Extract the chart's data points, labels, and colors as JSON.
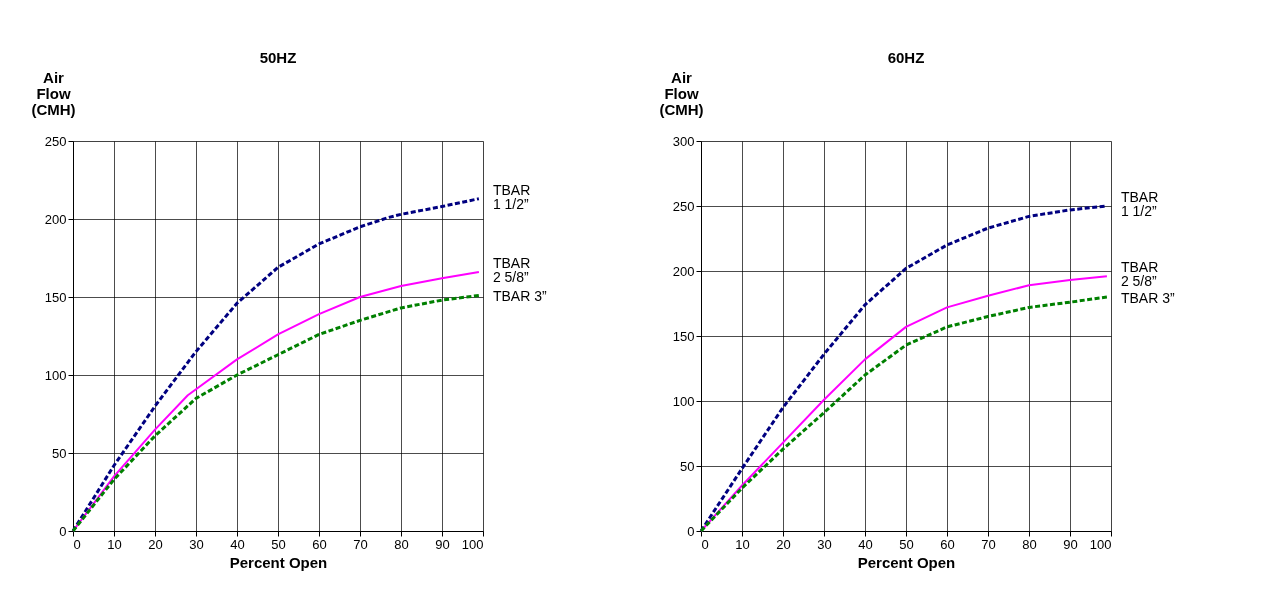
{
  "chart_data": [
    {
      "type": "line",
      "title": "50HZ",
      "xlabel": "Percent Open",
      "ylabel": "Air Flow (CMH)",
      "xlim": [
        0,
        100
      ],
      "ylim": [
        0,
        250
      ],
      "xticks": [
        0,
        10,
        20,
        30,
        40,
        50,
        60,
        70,
        80,
        90,
        100
      ],
      "yticks": [
        0,
        50,
        100,
        150,
        200,
        250
      ],
      "grid": true,
      "legend": false,
      "marker": "none",
      "series": [
        {
          "name": "TBAR 1 1/2”",
          "color": "#000080",
          "line_style": "dashed",
          "x": [
            0,
            10,
            20,
            30,
            40,
            50,
            60,
            70,
            77,
            80,
            90,
            99
          ],
          "values": [
            0,
            42,
            80,
            115,
            146,
            169,
            184,
            195,
            201,
            203,
            208,
            213
          ]
        },
        {
          "name": "TBAR 2 5/8”",
          "color": "#ff00ff",
          "line_style": "solid",
          "x": [
            0,
            10,
            20,
            28,
            40,
            50,
            60,
            70,
            80,
            90,
            99
          ],
          "values": [
            0,
            35,
            65,
            87,
            110,
            126,
            139,
            150,
            157,
            162,
            166
          ]
        },
        {
          "name": "TBAR 3”",
          "color": "#008000",
          "line_style": "dashed",
          "x": [
            0,
            10,
            20,
            30,
            40,
            50,
            60,
            70,
            80,
            90,
            99
          ],
          "values": [
            0,
            33,
            61,
            85,
            100,
            113,
            126,
            135,
            143,
            148,
            151
          ]
        }
      ]
    },
    {
      "type": "line",
      "title": "60HZ",
      "xlabel": "Percent Open",
      "ylabel": "Air Flow (CMH)",
      "xlim": [
        0,
        100
      ],
      "ylim": [
        0,
        300
      ],
      "xticks": [
        0,
        10,
        20,
        30,
        40,
        50,
        60,
        70,
        80,
        90,
        100
      ],
      "yticks": [
        0,
        50,
        100,
        150,
        200,
        250,
        300
      ],
      "grid": true,
      "legend": false,
      "marker": "none",
      "series": [
        {
          "name": "TBAR 1 1/2”",
          "color": "#000080",
          "line_style": "dashed",
          "x": [
            0,
            10,
            20,
            30,
            40,
            50,
            60,
            70,
            80,
            90,
            99
          ],
          "values": [
            0,
            48,
            95,
            136,
            174,
            202,
            220,
            233,
            242,
            247,
            250
          ]
        },
        {
          "name": "TBAR 2 5/8”",
          "color": "#ff00ff",
          "line_style": "solid",
          "x": [
            0,
            10,
            20,
            30,
            40,
            50,
            60,
            70,
            80,
            90,
            99
          ],
          "values": [
            0,
            35,
            68,
            101,
            132,
            157,
            172,
            181,
            189,
            193,
            196
          ]
        },
        {
          "name": "TBAR 3”",
          "color": "#008000",
          "line_style": "dashed",
          "x": [
            0,
            10,
            20,
            30,
            40,
            50,
            60,
            70,
            80,
            90,
            99
          ],
          "values": [
            0,
            33,
            63,
            91,
            120,
            143,
            157,
            165,
            172,
            176,
            180
          ]
        }
      ]
    }
  ]
}
